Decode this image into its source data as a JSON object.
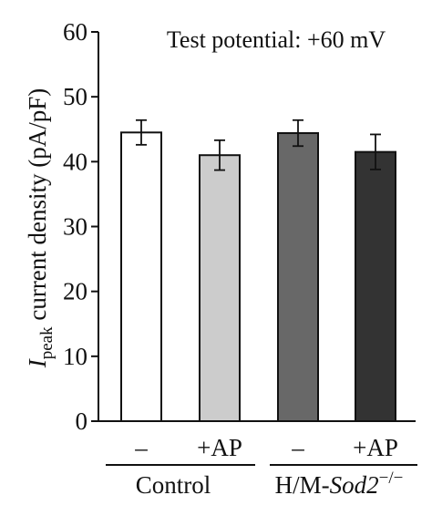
{
  "chart_data": {
    "type": "bar",
    "annotation": "Test potential: +60 mV",
    "ylabel": {
      "main": "I",
      "subscript": "peak",
      "rest": " current density (pA/pF)"
    },
    "ylim": [
      0,
      60
    ],
    "yticks": [
      0,
      10,
      20,
      30,
      40,
      50,
      60
    ],
    "grid": false,
    "categories": [
      "–",
      "+AP",
      "–",
      "+AP"
    ],
    "values": [
      44.5,
      41.0,
      44.4,
      41.5
    ],
    "errors": [
      1.9,
      2.3,
      2.0,
      2.7
    ],
    "bar_colors": [
      "#ffffff",
      "#cccccc",
      "#686868",
      "#333333"
    ],
    "groups": [
      {
        "label": "Control",
        "span": [
          0,
          1
        ]
      },
      {
        "label": "H/M-Sod2",
        "superscript": "−/−",
        "span": [
          2,
          3
        ]
      }
    ]
  }
}
